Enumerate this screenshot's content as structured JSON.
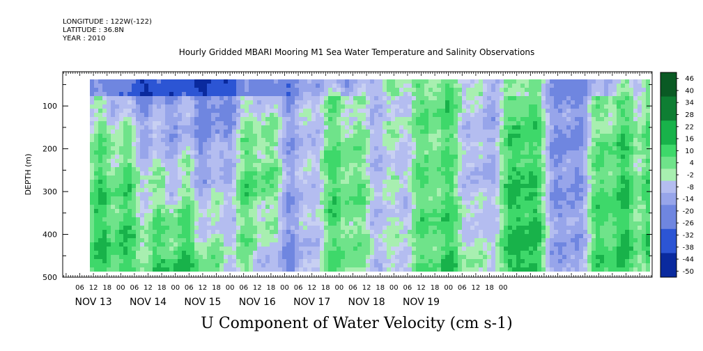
{
  "header": {
    "longitude": "LONGITUDE : 122W(-122)",
    "latitude": "LATITUDE : 36.8N",
    "year": "YEAR : 2010",
    "title": "Hourly Gridded MBARI Mooring M1 Sea Water Temperature and Salinity Observations"
  },
  "footer": {
    "variable_title": "U Component of Water Velocity (cm s-1)"
  },
  "chart_data": {
    "type": "heatmap",
    "title": "Hourly Gridded MBARI Mooring M1 Sea Water Temperature and Salinity Observations",
    "xlabel": "",
    "ylabel": "DEPTH (m)",
    "ylim": [
      500,
      20
    ],
    "y_ticks": [
      100,
      200,
      300,
      400,
      500
    ],
    "x_hour_ticks": [
      "06",
      "12",
      "18",
      "00",
      "06",
      "12",
      "18",
      "00",
      "06",
      "12",
      "18",
      "00",
      "06",
      "12",
      "18",
      "00",
      "06",
      "12",
      "18",
      "00",
      "06",
      "12",
      "18",
      "00",
      "06",
      "12",
      "18",
      "00",
      "06",
      "12",
      "18",
      "00"
    ],
    "x_day_labels": [
      "NOV 13",
      "NOV 14",
      "NOV 15",
      "NOV 16",
      "NOV 17",
      "NOV 18",
      "NOV 19"
    ],
    "colorbar_labels": [
      "46",
      "40",
      "34",
      "28",
      "22",
      "16",
      "10",
      "4",
      "-2",
      "-8",
      "-14",
      "-20",
      "-26",
      "-32",
      "-38",
      "-44",
      "-50"
    ],
    "colorbar_range": [
      -50,
      52
    ],
    "colors": {
      "strong_negative": "#0a2a9e",
      "negative": "#6f86e0",
      "weak_negative": "#b4bdf0",
      "weak_positive": "#a8efb0",
      "positive": "#3ed86a",
      "strong_positive": "#0e6b2a"
    },
    "depth_profile_bands": [
      {
        "time": "NOV 13 06",
        "surface": -20,
        "mid": 6,
        "deep": 10
      },
      {
        "time": "NOV 14 00",
        "surface": -30,
        "mid": 8,
        "deep": 12
      },
      {
        "time": "NOV 14 12",
        "surface": -32,
        "mid": -6,
        "deep": 14
      },
      {
        "time": "NOV 15 00",
        "surface": -34,
        "mid": -4,
        "deep": 6
      },
      {
        "time": "NOV 15 12",
        "surface": -20,
        "mid": 10,
        "deep": -6
      },
      {
        "time": "NOV 16 00",
        "surface": -10,
        "mid": -8,
        "deep": -10
      },
      {
        "time": "NOV 16 12",
        "surface": -6,
        "mid": 14,
        "deep": 12
      },
      {
        "time": "NOV 17 00",
        "surface": -4,
        "mid": -10,
        "deep": -8
      },
      {
        "time": "NOV 17 12",
        "surface": 14,
        "mid": 16,
        "deep": 18
      },
      {
        "time": "NOV 18 00",
        "surface": -6,
        "mid": -12,
        "deep": -4
      },
      {
        "time": "NOV 18 12",
        "surface": 4,
        "mid": 20,
        "deep": 22
      },
      {
        "time": "NOV 19 00",
        "surface": -14,
        "mid": -16,
        "deep": -12
      },
      {
        "time": "NOV 19 12",
        "surface": -10,
        "mid": 8,
        "deep": 10
      },
      {
        "time": "NOV 20 00",
        "surface": 6,
        "mid": 14,
        "deep": 16
      }
    ]
  }
}
